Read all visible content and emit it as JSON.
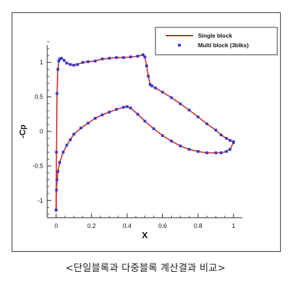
{
  "caption": "<단일블록과 다중블록 계산결과 비교>",
  "chart_data": {
    "type": "line",
    "xlabel": "X",
    "ylabel": "-Cp",
    "xlim": [
      -0.05,
      1.05
    ],
    "ylim": [
      -1.25,
      1.25
    ],
    "xticks": [
      0,
      0.2,
      0.4,
      0.6,
      0.8,
      1
    ],
    "yticks": [
      -1,
      -0.5,
      0,
      0.5,
      1
    ],
    "xtick_labels": [
      "0",
      "0.2",
      "0.4",
      "0.6",
      "0.8",
      "1"
    ],
    "ytick_labels": [
      "-1",
      "-0.5",
      "0",
      "0.5",
      "1"
    ],
    "legend_position": "top-right",
    "colors": {
      "line": "#d8201f",
      "markers": "#3a3acc"
    },
    "series": [
      {
        "name": "Single block",
        "style": "line",
        "upper": {
          "x": [
            0.0,
            0.002,
            0.005,
            0.01,
            0.015,
            0.02,
            0.03,
            0.045,
            0.06,
            0.08,
            0.1,
            0.12,
            0.15,
            0.18,
            0.22,
            0.26,
            0.3,
            0.34,
            0.38,
            0.42,
            0.46,
            0.49,
            0.5,
            0.51,
            0.52,
            0.53,
            0.54,
            0.56,
            0.6,
            0.65,
            0.7,
            0.75,
            0.8,
            0.85,
            0.9,
            0.93,
            0.96,
            0.98,
            1.0
          ],
          "y": [
            -1.14,
            -0.3,
            0.55,
            0.9,
            1.02,
            1.05,
            1.06,
            1.03,
            0.99,
            0.97,
            0.96,
            0.97,
            1.0,
            1.01,
            1.02,
            1.05,
            1.06,
            1.07,
            1.07,
            1.08,
            1.09,
            1.11,
            1.08,
            0.95,
            0.8,
            0.68,
            0.66,
            0.63,
            0.57,
            0.49,
            0.4,
            0.31,
            0.21,
            0.11,
            0.02,
            -0.05,
            -0.1,
            -0.13,
            -0.15
          ]
        },
        "lower": {
          "x": [
            0.0,
            0.002,
            0.005,
            0.01,
            0.02,
            0.04,
            0.06,
            0.08,
            0.1,
            0.14,
            0.18,
            0.22,
            0.26,
            0.3,
            0.34,
            0.38,
            0.4,
            0.42,
            0.46,
            0.5,
            0.55,
            0.6,
            0.65,
            0.7,
            0.75,
            0.8,
            0.85,
            0.9,
            0.93,
            0.96,
            0.98,
            1.0
          ],
          "y": [
            -1.14,
            -0.85,
            -0.7,
            -0.58,
            -0.45,
            -0.3,
            -0.2,
            -0.12,
            -0.04,
            0.05,
            0.12,
            0.19,
            0.24,
            0.28,
            0.32,
            0.35,
            0.36,
            0.34,
            0.25,
            0.15,
            0.04,
            -0.06,
            -0.14,
            -0.21,
            -0.26,
            -0.29,
            -0.31,
            -0.31,
            -0.31,
            -0.29,
            -0.26,
            -0.16
          ]
        }
      },
      {
        "name": "Multi block (3blks)",
        "style": "markers",
        "upper": {
          "x": [
            0.0,
            0.002,
            0.005,
            0.01,
            0.015,
            0.02,
            0.03,
            0.045,
            0.06,
            0.08,
            0.1,
            0.12,
            0.15,
            0.18,
            0.22,
            0.26,
            0.3,
            0.34,
            0.38,
            0.42,
            0.46,
            0.49,
            0.5,
            0.51,
            0.52,
            0.53,
            0.54,
            0.56,
            0.6,
            0.65,
            0.7,
            0.75,
            0.8,
            0.85,
            0.9,
            0.93,
            0.96,
            0.98,
            1.0
          ],
          "y": [
            -1.14,
            -0.3,
            0.55,
            0.9,
            1.02,
            1.05,
            1.06,
            1.03,
            0.99,
            0.97,
            0.96,
            0.97,
            1.0,
            1.01,
            1.02,
            1.05,
            1.06,
            1.07,
            1.07,
            1.08,
            1.09,
            1.11,
            1.08,
            0.95,
            0.8,
            0.68,
            0.66,
            0.63,
            0.57,
            0.49,
            0.4,
            0.31,
            0.21,
            0.11,
            0.02,
            -0.05,
            -0.1,
            -0.13,
            -0.15
          ]
        },
        "lower": {
          "x": [
            0.0,
            0.002,
            0.005,
            0.01,
            0.02,
            0.04,
            0.06,
            0.08,
            0.1,
            0.14,
            0.18,
            0.22,
            0.26,
            0.3,
            0.34,
            0.38,
            0.4,
            0.42,
            0.46,
            0.5,
            0.55,
            0.6,
            0.65,
            0.7,
            0.75,
            0.8,
            0.85,
            0.9,
            0.93,
            0.96,
            0.98,
            1.0
          ],
          "y": [
            -1.14,
            -0.85,
            -0.7,
            -0.58,
            -0.45,
            -0.3,
            -0.2,
            -0.12,
            -0.04,
            0.05,
            0.12,
            0.19,
            0.24,
            0.28,
            0.32,
            0.35,
            0.36,
            0.34,
            0.25,
            0.15,
            0.04,
            -0.06,
            -0.14,
            -0.21,
            -0.26,
            -0.29,
            -0.31,
            -0.31,
            -0.31,
            -0.29,
            -0.26,
            -0.16
          ]
        }
      }
    ]
  }
}
